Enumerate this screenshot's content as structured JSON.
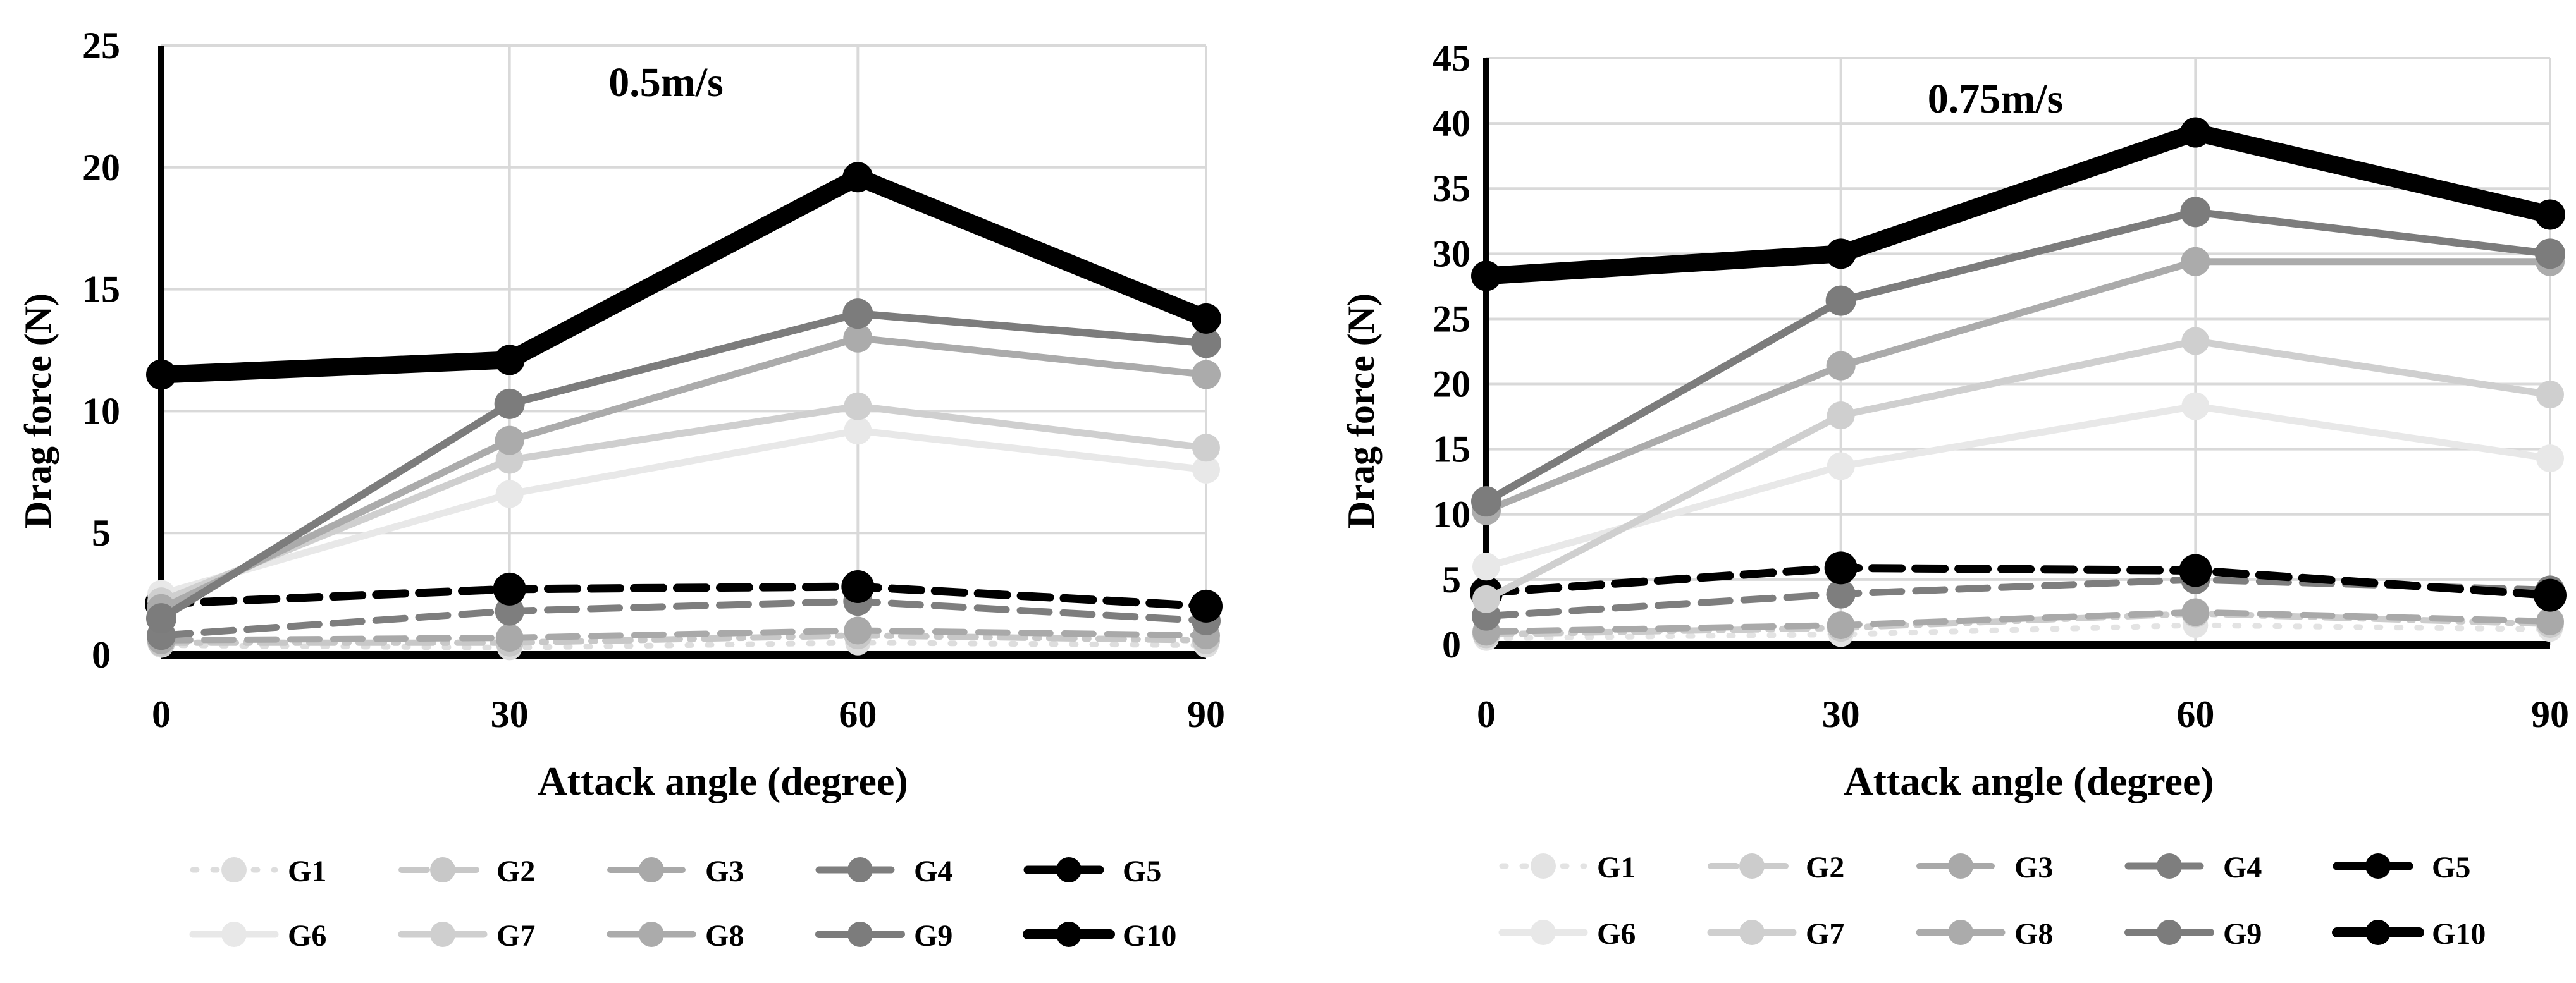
{
  "chart_data": [
    {
      "type": "line",
      "title": "0.5m/s",
      "xlabel": "Attack angle (degree)",
      "ylabel": "Drag force (N)",
      "x": [
        0,
        30,
        60,
        90
      ],
      "xlim": [
        0,
        90
      ],
      "ylim": [
        0,
        25
      ],
      "yticks": [
        0,
        5,
        10,
        15,
        20,
        25
      ],
      "grid": true,
      "legend_position": "bottom",
      "series": [
        {
          "name": "G1",
          "values": [
            0.4,
            0.3,
            0.5,
            0.4
          ],
          "color": "#dddddd",
          "dash": "dotted"
        },
        {
          "name": "G2",
          "values": [
            0.5,
            0.5,
            0.8,
            0.6
          ],
          "color": "#c8c8c8",
          "dash": "dashdot"
        },
        {
          "name": "G3",
          "values": [
            0.6,
            0.7,
            1.0,
            0.8
          ],
          "color": "#a9a9a9",
          "dash": "dash"
        },
        {
          "name": "G4",
          "values": [
            0.8,
            1.8,
            2.2,
            1.4
          ],
          "color": "#7e7e7e",
          "dash": "dash"
        },
        {
          "name": "G5",
          "values": [
            2.1,
            2.7,
            2.8,
            2.0
          ],
          "color": "#000000",
          "dash": "dash"
        },
        {
          "name": "G6",
          "values": [
            2.5,
            6.6,
            9.2,
            7.6
          ],
          "color": "#e8e8e8",
          "dash": "solid"
        },
        {
          "name": "G7",
          "values": [
            2.2,
            8.0,
            10.2,
            8.5
          ],
          "color": "#cfcfcf",
          "dash": "solid"
        },
        {
          "name": "G8",
          "values": [
            1.9,
            8.8,
            13.0,
            11.5
          ],
          "color": "#ababab",
          "dash": "solid"
        },
        {
          "name": "G9",
          "values": [
            1.5,
            10.3,
            14.0,
            12.8
          ],
          "color": "#7c7c7c",
          "dash": "solid"
        },
        {
          "name": "G10",
          "values": [
            11.5,
            12.1,
            19.6,
            13.8
          ],
          "color": "#000000",
          "dash": "solid"
        }
      ]
    },
    {
      "type": "line",
      "title": "0.75m/s",
      "xlabel": "Attack angle (degree)",
      "ylabel": "Drag force (N)",
      "x": [
        0,
        30,
        60,
        90
      ],
      "xlim": [
        0,
        90
      ],
      "ylim": [
        0,
        45
      ],
      "yticks": [
        0,
        5,
        10,
        15,
        20,
        25,
        30,
        35,
        40,
        45
      ],
      "grid": true,
      "legend_position": "bottom",
      "series": [
        {
          "name": "G1",
          "values": [
            0.5,
            0.8,
            1.5,
            1.2
          ],
          "color": "#e3e3e3",
          "dash": "dotted"
        },
        {
          "name": "G2",
          "values": [
            0.8,
            1.3,
            2.4,
            1.6
          ],
          "color": "#cccccc",
          "dash": "dashdot"
        },
        {
          "name": "G3",
          "values": [
            1.0,
            1.5,
            2.5,
            1.8
          ],
          "color": "#a9a9a9",
          "dash": "dash"
        },
        {
          "name": "G4",
          "values": [
            2.2,
            3.9,
            5.0,
            4.2
          ],
          "color": "#7e7e7e",
          "dash": "dash"
        },
        {
          "name": "G5",
          "values": [
            4.0,
            5.9,
            5.7,
            3.8
          ],
          "color": "#000000",
          "dash": "dash"
        },
        {
          "name": "G6",
          "values": [
            6.0,
            13.7,
            18.3,
            14.3
          ],
          "color": "#e8e8e8",
          "dash": "solid"
        },
        {
          "name": "G7",
          "values": [
            3.5,
            17.6,
            23.3,
            19.2
          ],
          "color": "#cfcfcf",
          "dash": "solid"
        },
        {
          "name": "G8",
          "values": [
            10.3,
            21.4,
            29.4,
            29.4
          ],
          "color": "#ababab",
          "dash": "solid"
        },
        {
          "name": "G9",
          "values": [
            11.0,
            26.4,
            33.2,
            30.0
          ],
          "color": "#7c7c7c",
          "dash": "solid"
        },
        {
          "name": "G10",
          "values": [
            28.3,
            30.0,
            39.3,
            33.0
          ],
          "color": "#000000",
          "dash": "solid"
        }
      ]
    }
  ]
}
